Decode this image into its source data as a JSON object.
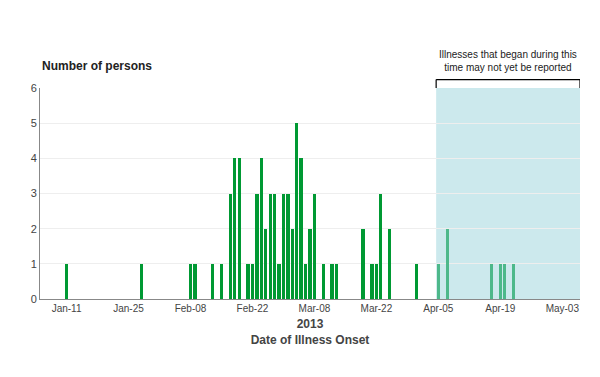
{
  "chart_data": {
    "type": "bar",
    "ylabel": "Number of persons",
    "xlabel": "2013\nDate of Illness Onset",
    "annotation": "Illnesses that began during this\ntime may not yet be reported",
    "x": [
      11,
      28,
      39,
      40,
      44,
      46,
      48,
      49,
      50,
      52,
      53,
      54,
      55,
      56,
      57,
      58,
      59,
      60,
      61,
      62,
      63,
      64,
      65,
      66,
      67,
      69,
      71,
      72,
      78,
      80,
      81,
      82,
      84,
      90,
      95,
      97,
      107,
      109,
      110,
      112
    ],
    "values": [
      1,
      1,
      1,
      1,
      1,
      1,
      3,
      4,
      4,
      1,
      1,
      3,
      4,
      2,
      3,
      3,
      1,
      3,
      3,
      2,
      5,
      4,
      1,
      2,
      3,
      1,
      1,
      1,
      2,
      1,
      1,
      3,
      2,
      1,
      1,
      2,
      1,
      1,
      1,
      1
    ],
    "colors": [
      "#009933",
      "#009933",
      "#009933",
      "#009933",
      "#009933",
      "#009933",
      "#009933",
      "#009933",
      "#009933",
      "#009933",
      "#009933",
      "#009933",
      "#009933",
      "#009933",
      "#009933",
      "#009933",
      "#009933",
      "#009933",
      "#009933",
      "#009933",
      "#009933",
      "#009933",
      "#009933",
      "#009933",
      "#009933",
      "#009933",
      "#009933",
      "#009933",
      "#009933",
      "#009933",
      "#009933",
      "#009933",
      "#009933",
      "#009933",
      "#4db88a",
      "#4db88a",
      "#4db88a",
      "#4db88a",
      "#4db88a",
      "#4db88a"
    ],
    "shade": {
      "from": 95,
      "color": "#cce9ed"
    },
    "xlim": [
      5,
      127
    ],
    "xticks": [
      {
        "value": 11,
        "label": "Jan-11"
      },
      {
        "value": 25,
        "label": "Jan-25"
      },
      {
        "value": 39,
        "label": "Feb-08"
      },
      {
        "value": 53,
        "label": "Feb-22"
      },
      {
        "value": 67,
        "label": "Mar-08"
      },
      {
        "value": 81,
        "label": "Mar-22"
      },
      {
        "value": 95,
        "label": "Apr-05"
      },
      {
        "value": 109,
        "label": "Apr-19"
      },
      {
        "value": 123,
        "label": "May-03"
      }
    ],
    "ylim": [
      0,
      6
    ],
    "yticks": [
      0,
      1,
      2,
      3,
      4,
      5,
      6
    ],
    "grid": true
  }
}
